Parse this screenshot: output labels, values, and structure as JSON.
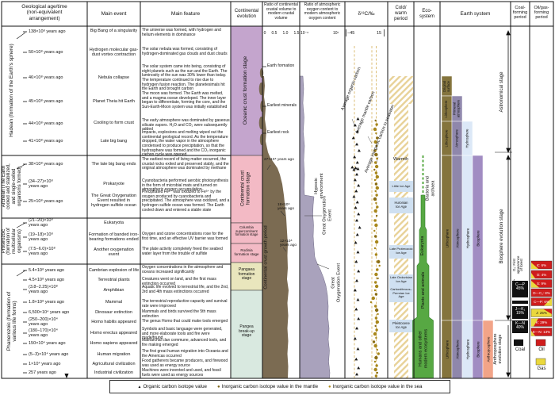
{
  "header": {
    "cols": [
      "Geological age/time\n(non-equivalent\narrangement)",
      "Main event",
      "Main feature",
      "Continental\nevolution",
      "Ratio of continental\ncrustal volume to\nmodern crustal\nvolume",
      "Ratio of atmospheric\noxygen content to\nmodern atmospheric\noxygen content",
      "δ¹³C/‰",
      "Cold/\nwarm\nperiod",
      "Eco-\nsystem",
      "Earth system",
      "Coal-\nforming\nperiod",
      "Oil/gas-\nforming\nperiod"
    ]
  },
  "scales": {
    "crustal": [
      "0",
      "0.5",
      "1.0",
      "1.5"
    ],
    "oxygen": [
      "10⁻⁶",
      "10¹"
    ],
    "carbon": [
      "−45",
      "15"
    ]
  },
  "eras": [
    {
      "name": "Hadean (formation of the Earth's sphere)"
    },
    {
      "name": "Archean (The Earth\ncooled and stabilized,\nand single-celled\norganisms formed)"
    },
    {
      "name": "Proterozoic\n(formation of\nmulticellular\norganisms)"
    },
    {
      "name": "Phanerozoic (formation of\nvarious life forms)"
    }
  ],
  "rows": [
    {
      "time": "138×10⁸ years ago",
      "event": "Big Bang of a singularity",
      "feature": "The universe was formed, with hydrogen and helium elements in dominance"
    },
    {
      "time": "50×10⁸ years ago",
      "event": "Hydrogen molecular gas-\ndust vortex contraction",
      "feature": "The solar nebula was formed, consisting of hydrogen-dominated gas clouds and dust clouds"
    },
    {
      "time": "46×10⁸ years ago",
      "event": "Nebula collapse",
      "feature": "The solar system came into being, consisting of eight planets such as the sun and the Earth. The luminosity of the sun was 30% lower than today. The temperature continued to rise due to hydrogen fusion reaction. The planetesimals hit the Earth and brought carbon"
    },
    {
      "time": "45×10⁸ years ago",
      "event": "Planet Theia hit Earth",
      "feature": "The moon was formed. The Earth was melted, and a magma ocean developed. The inner layer began to differentiate, forming the core, and the Sun-Earth-Moon system was initially established"
    },
    {
      "time": "44×10⁸ years ago",
      "event": "Cooling to form crust",
      "feature": "The early atmosphere was dominated by gaseous silicate vapors. H₂O and CO₂ were subsequently added"
    },
    {
      "time": "41×10⁸ years ago",
      "event": "Late big bang",
      "feature": "Impacts, explosions and melting wiped out the continental geological record. As the temperature dropped, the water vapor in the atmosphere condensed to produce precipitation, so that the hydrosphere was formed and the CO₂ inorganic carbon cycle was opened"
    },
    {
      "time": "38×10⁸ years ago",
      "event": "The late big bang ends",
      "feature": "The earliest record of living matter occurred, the crustal rocks exited and preserved stably, and the original atmosphere was dominated by methane"
    },
    {
      "time": "(34−27)×10⁸\nyears ago",
      "event": "Prokaryote",
      "feature": "Cyanobacteria performed aerobic photosynthesis in the form of microbial mats and turned on atmospheric oxygen accumulation"
    },
    {
      "time": "25×10⁸ years ago",
      "event": "The Great Oxygenation\nEvent resulted in\nhydrogen sulfide ocean",
      "feature": "Precipitated Fe²⁺ was oxidized to Fe³⁺ by the oxygen produced by cyanobacteria and precipitated. The atmosphere was oxidized, and a hydrogen sulfide ocean was formed. The Earth cooled down and entered a stable state"
    },
    {
      "time": "(21−20)×10⁸\nyears ago",
      "event": "Eukaryota",
      "feature": ""
    },
    {
      "time": "(19−18)×10⁸\nyears ago",
      "event": "Formation of banded iron-\nbearing formations ended",
      "feature": "Oxygen and ozone concentrations rose for the first time, and an effective UV barrier was formed"
    },
    {
      "time": "(7.5−6.0)×10⁸\nyears ago",
      "event": "Another oxygenation\nevent",
      "feature": "The plate activity completely freed the seabed water layer from the trouble of sulfide"
    },
    {
      "time": "5.4×10⁸ years ago",
      "event": "Cambrian explosion of life",
      "feature": "Oxygen concentrations in the atmosphere and oceans increased significantly"
    },
    {
      "time": "4.5×10⁸ years ago",
      "event": "Terrestrial plants",
      "feature": "Creatures went on land, and the first mass extinction occurred"
    },
    {
      "time": "(3.8−2.25)×10⁸\nyears ago",
      "event": "Amphibian",
      "feature": "Aquatic life evolved to terrestrial life, and the 2nd, 3rd and 4th mass extinctions occurred"
    },
    {
      "time": "1.8×10⁸ years ago",
      "event": "Mammal",
      "feature": "The terrestrial reproductive capacity and survival rate were improved"
    },
    {
      "time": "6,500×10⁴ years ago",
      "event": "Dinosaur extinction",
      "feature": "Mammals and birds survived the 5th mass extinction"
    },
    {
      "time": "(250−200)×10⁴\nyears ago",
      "event": "Homo habilis appeared",
      "feature": "The genus Homo that could make tools emerged"
    },
    {
      "time": "(180−170)×10⁴\nyears ago",
      "event": "Homo erectus appeared",
      "feature": "Symbols and basic language were generated, and more elaborate tools and fire were made/found"
    },
    {
      "time": "150×10⁴ years ago",
      "event": "Homo sapiens appeared",
      "feature": "Matriarchal clan commune, advanced tools, and fire making emerged"
    },
    {
      "time": "(5−3)×10⁴ years ago",
      "event": "Human migration",
      "feature": "The first great human migration into Oceania and the Americas occurred"
    },
    {
      "time": "1×10⁴ years ago",
      "event": "Agricultural civilization",
      "feature": "Food gatherers became producers, and firewood was used as energy source"
    },
    {
      "time": "257 years ago",
      "event": "Industrial civilization",
      "feature": "Machines were invented and used, and fossil fuels were used as energy sources"
    }
  ],
  "continental": {
    "stages": [
      "Oceanic crust formation stage",
      "Continental crust\nformation stage",
      "Columbia\nsupercontinent\nformation stage",
      "Rodinia\nformation stage",
      "Pangaea\nformation\nstage",
      "Pangea\nbreak-up\nstage"
    ],
    "milestones": [
      "Earth formation",
      "Earliest minerals",
      "Earliest rock"
    ],
    "growth_label": "Continental crust growth period",
    "growth_marks": [
      "27×10⁸ years ago",
      "19×10⁸\nyears ago",
      "12×10⁸\nyears ago"
    ]
  },
  "oxygen": {
    "labels": [
      "Hypoxic\nenvironment",
      "Great Oxygenation\nEvent",
      "Great\nOxygenation Event"
    ]
  },
  "carbon": {
    "refs": [
      "Average organic carbon",
      "Average mantle carbon",
      "Average inorganic carbon in seawater"
    ]
  },
  "climate": {
    "warmth": "Warmth",
    "ice_ages": [
      "Little Ice Age",
      "Huronian\nIce Age",
      "Late Proterozoic\nIce Age",
      "Late Ordovician\nIce Age",
      "Carboniferous–\nPermian Ice\nAge",
      "Pleistocene\nIce Age"
    ]
  },
  "ecosystem": {
    "labels": [
      "Bacteria and\narchaea",
      "Eukaryota",
      "Plants and animals",
      "Humans and other\nmodern ecosystems"
    ]
  },
  "earth_system": {
    "r1": [
      "Original\nsurface"
    ],
    "r2": [
      "Lithosphere",
      "Primeval\natmosphere"
    ],
    "r3": [
      "Lithosphere",
      "Atmosphere",
      "Hydrosphere"
    ],
    "r4": [
      "Lithosphere",
      "Atmosphere",
      "Hydrosphere",
      "Biosphere"
    ],
    "r5": [
      "Lithosphere",
      "Atmosphere",
      "Hydrosphere",
      "Biosphere",
      "Anthroposphere"
    ],
    "stages": [
      "Astronomical stage",
      "Biosphere evolution stage",
      "Anthroposphere\nevolution stage"
    ]
  },
  "coal": {
    "note": "D₂: First\nappearance\nof forest",
    "boxes": [
      "C—P\n45%",
      "J—K₁\n15%",
      "K—N\n40%"
    ],
    "legend": "Coal"
  },
  "oilgas": {
    "boxes": [
      "Є: 6%",
      "O: 4%",
      "S: 9%",
      "D—C₁: 8%",
      "C—P: 6%",
      "J: 25%",
      "K: 29%",
      "E—N: 13%"
    ],
    "legend_oil": "Oil",
    "legend_gas": "Gas"
  },
  "legend": {
    "markers": [
      "▲",
      "●",
      "●"
    ],
    "items": [
      "Organic carbon isotope value",
      "Inorganic carbon isotope value in the mantle",
      "Inorganic carbon isotope value in the sea"
    ]
  },
  "colors": {
    "oil": "#cf1c1c",
    "gas": "#ead83c",
    "coal": "#111111",
    "ocean_stage": "#c4a5cd",
    "continental_stage": "#f3bac5",
    "pangaea_stage": "#e9e6bd",
    "breakup_stage": "#d9e9e0",
    "crust_fill": "#7b6b52",
    "oxygen_fill": "#a9a2bc",
    "ecosystem_green": "#57a843",
    "ice_band": "#cfe0f1",
    "warmth_hatch": "#e8d298",
    "sea_dot": "#a8871c",
    "organic_marker": "#1a1a1a"
  },
  "chart_data": {
    "type": "scatter",
    "xlabel": "δ¹³C/‰",
    "xlim": [
      -45,
      15
    ],
    "reference_lines": {
      "average_organic_carbon": -30,
      "average_mantle_carbon": -5,
      "average_inorganic_carbon_in_seawater": 0
    },
    "series": [
      {
        "name": "Organic carbon isotope value",
        "marker": "triangle",
        "color": "#1a1a1a",
        "points": [
          [
            150,
            -29
          ],
          [
            158,
            -34
          ],
          [
            166,
            -30
          ],
          [
            174,
            -37
          ],
          [
            182,
            -31
          ],
          [
            190,
            -27
          ],
          [
            198,
            -35
          ],
          [
            205,
            -30
          ],
          [
            211,
            -39
          ],
          [
            212,
            -33
          ],
          [
            213,
            -29
          ],
          [
            214,
            -36
          ],
          [
            220,
            -31
          ],
          [
            227,
            -34
          ],
          [
            234,
            -28
          ],
          [
            241,
            -32
          ],
          [
            248,
            -36
          ],
          [
            255,
            -30
          ],
          [
            262,
            -33
          ],
          [
            270,
            -28
          ],
          [
            278,
            -31
          ],
          [
            287,
            -26
          ],
          [
            296,
            -30
          ],
          [
            306,
            -33
          ],
          [
            318,
            -29
          ],
          [
            330,
            -32
          ],
          [
            342,
            -28
          ],
          [
            354,
            -31
          ],
          [
            366,
            -34
          ],
          [
            378,
            -29
          ],
          [
            390,
            -32
          ],
          [
            402,
            -28
          ],
          [
            414,
            -31
          ],
          [
            427,
            -34
          ],
          [
            440,
            -29
          ],
          [
            453,
            -32
          ],
          [
            464,
            -28
          ],
          [
            472,
            -31
          ]
        ]
      },
      {
        "name": "Inorganic carbon isotope value in the sea",
        "marker": "circle",
        "color": "#a8871c",
        "points": [
          [
            152,
            2
          ],
          [
            157,
            4
          ],
          [
            163,
            1
          ],
          [
            168,
            3
          ],
          [
            174,
            5
          ],
          [
            179,
            2
          ],
          [
            184,
            4
          ],
          [
            190,
            1
          ],
          [
            195,
            3
          ],
          [
            200,
            5
          ],
          [
            205,
            2
          ],
          [
            210,
            4
          ],
          [
            214,
            0
          ],
          [
            218,
            3
          ],
          [
            223,
            5
          ],
          [
            227,
            1
          ],
          [
            232,
            3
          ],
          [
            237,
            5
          ],
          [
            241,
            2
          ],
          [
            246,
            4
          ],
          [
            251,
            1
          ],
          [
            256,
            3
          ],
          [
            261,
            5
          ],
          [
            266,
            2
          ],
          [
            272,
            4
          ],
          [
            278,
            1
          ],
          [
            284,
            3
          ],
          [
            291,
            0
          ],
          [
            298,
            2
          ],
          [
            305,
            4
          ],
          [
            313,
            1
          ],
          [
            321,
            3
          ],
          [
            330,
            7
          ],
          [
            335,
            9
          ],
          [
            340,
            5
          ],
          [
            346,
            3
          ],
          [
            351,
            6
          ],
          [
            356,
            2
          ],
          [
            361,
            4
          ],
          [
            366,
            1
          ],
          [
            371,
            3
          ],
          [
            376,
            -2
          ],
          [
            381,
            -6
          ],
          [
            386,
            2
          ],
          [
            391,
            4
          ],
          [
            396,
            6
          ],
          [
            401,
            3
          ],
          [
            406,
            5
          ],
          [
            411,
            2
          ],
          [
            416,
            4
          ],
          [
            421,
            1
          ],
          [
            426,
            3
          ],
          [
            431,
            -1
          ],
          [
            436,
            2
          ],
          [
            441,
            5
          ],
          [
            446,
            7
          ],
          [
            451,
            3
          ],
          [
            456,
            1
          ],
          [
            461,
            4
          ],
          [
            466,
            2
          ],
          [
            470,
            5
          ],
          [
            474,
            3
          ]
        ]
      }
    ]
  }
}
